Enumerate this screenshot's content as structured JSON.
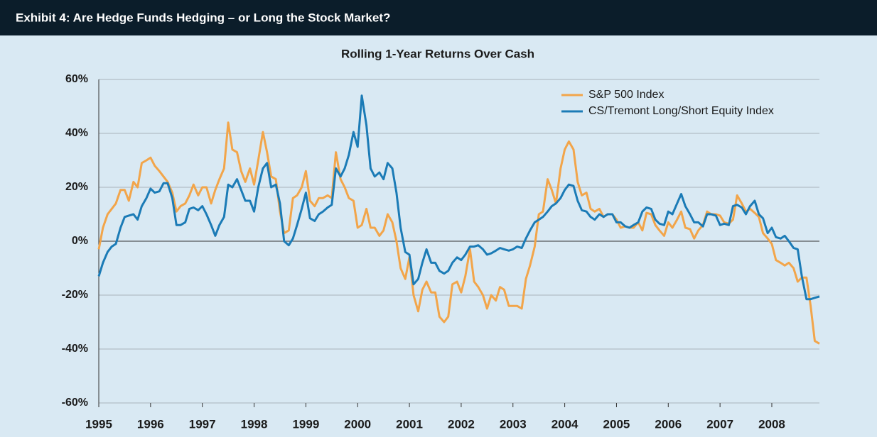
{
  "header": {
    "title": "Exhibit 4: Are Hedge Funds Hedging – or Long the Stock Market?"
  },
  "chart_data": {
    "type": "line",
    "title": "Rolling 1-Year Returns Over Cash",
    "x": [
      1995.0,
      1995.08,
      1995.17,
      1995.25,
      1995.33,
      1995.42,
      1995.5,
      1995.58,
      1995.67,
      1995.75,
      1995.83,
      1995.92,
      1996.0,
      1996.08,
      1996.17,
      1996.25,
      1996.33,
      1996.42,
      1996.5,
      1996.58,
      1996.67,
      1996.75,
      1996.83,
      1996.92,
      1997.0,
      1997.08,
      1997.17,
      1997.25,
      1997.33,
      1997.42,
      1997.5,
      1997.58,
      1997.67,
      1997.75,
      1997.83,
      1997.92,
      1998.0,
      1998.08,
      1998.17,
      1998.25,
      1998.33,
      1998.42,
      1998.5,
      1998.58,
      1998.67,
      1998.75,
      1998.83,
      1998.92,
      1999.0,
      1999.08,
      1999.17,
      1999.25,
      1999.33,
      1999.42,
      1999.5,
      1999.58,
      1999.67,
      1999.75,
      1999.83,
      1999.92,
      2000.0,
      2000.08,
      2000.17,
      2000.25,
      2000.33,
      2000.42,
      2000.5,
      2000.58,
      2000.67,
      2000.75,
      2000.83,
      2000.92,
      2001.0,
      2001.08,
      2001.17,
      2001.25,
      2001.33,
      2001.42,
      2001.5,
      2001.58,
      2001.67,
      2001.75,
      2001.83,
      2001.92,
      2002.0,
      2002.08,
      2002.17,
      2002.25,
      2002.33,
      2002.42,
      2002.5,
      2002.58,
      2002.67,
      2002.75,
      2002.83,
      2002.92,
      2003.0,
      2003.08,
      2003.17,
      2003.25,
      2003.33,
      2003.42,
      2003.5,
      2003.58,
      2003.67,
      2003.75,
      2003.83,
      2003.92,
      2004.0,
      2004.08,
      2004.17,
      2004.25,
      2004.33,
      2004.42,
      2004.5,
      2004.58,
      2004.67,
      2004.75,
      2004.83,
      2004.92,
      2005.0,
      2005.08,
      2005.17,
      2005.25,
      2005.33,
      2005.42,
      2005.5,
      2005.58,
      2005.67,
      2005.75,
      2005.83,
      2005.92,
      2006.0,
      2006.08,
      2006.17,
      2006.25,
      2006.33,
      2006.42,
      2006.5,
      2006.58,
      2006.67,
      2006.75,
      2006.83,
      2006.92,
      2007.0,
      2007.08,
      2007.17,
      2007.25,
      2007.33,
      2007.42,
      2007.5,
      2007.58,
      2007.67,
      2007.75,
      2007.83,
      2007.92,
      2008.0,
      2008.08,
      2008.17,
      2008.25,
      2008.33,
      2008.42,
      2008.5,
      2008.58,
      2008.67,
      2008.75,
      2008.83,
      2008.92
    ],
    "series": [
      {
        "name": "S&P 500 Index",
        "color": "#f2a54a",
        "values": [
          -3,
          5,
          10,
          12,
          14,
          19,
          19,
          15,
          22,
          20,
          29,
          30,
          31,
          28,
          26,
          24,
          22,
          18,
          11,
          13,
          14,
          17,
          21,
          17,
          20,
          20,
          14,
          19,
          23,
          27,
          44,
          34,
          33,
          26,
          22,
          27,
          21,
          30,
          40.5,
          33,
          24,
          23,
          11,
          3,
          4,
          16,
          17,
          20,
          26,
          15,
          13,
          16,
          16,
          17,
          16,
          33,
          23,
          20,
          16,
          15,
          5,
          6,
          12,
          5,
          5,
          2,
          4,
          10,
          7,
          0,
          -10,
          -14,
          -6,
          -20,
          -26,
          -18,
          -15,
          -19,
          -19,
          -28,
          -30,
          -28,
          -16,
          -15,
          -19,
          -13,
          -3,
          -15,
          -17,
          -20,
          -25,
          -20,
          -22,
          -17,
          -18,
          -24,
          -24,
          -24,
          -25,
          -14,
          -9,
          -2,
          10,
          11,
          23,
          19,
          14,
          27,
          34,
          37,
          34,
          22,
          17,
          18,
          12,
          11,
          12,
          9,
          10,
          10,
          8,
          5,
          5.5,
          5,
          5,
          7,
          4,
          10.5,
          10,
          6,
          4,
          2,
          7,
          5,
          8,
          11,
          5,
          4.5,
          1,
          4,
          6,
          11,
          10,
          10,
          9.5,
          7,
          6.5,
          8,
          17,
          14,
          11,
          12,
          10.5,
          9,
          3,
          1,
          -1,
          -7,
          -8,
          -9,
          -8,
          -10,
          -15,
          -13.5,
          -13.5,
          -24,
          -37,
          -38
        ]
      },
      {
        "name": "CS/Tremont Long/Short Equity Index",
        "color": "#1b7bb6",
        "values": [
          -13,
          -8,
          -4,
          -2,
          -1,
          5,
          9,
          9.5,
          10,
          8,
          13,
          16,
          19.5,
          18,
          18.5,
          21.5,
          21.5,
          16,
          6,
          6,
          7,
          12,
          12.5,
          11.5,
          13,
          10,
          6,
          2,
          6,
          9,
          21,
          20,
          23,
          19,
          15,
          15,
          11,
          20,
          27,
          29,
          20,
          21,
          14,
          0,
          -1.5,
          1,
          6,
          12,
          18,
          8.5,
          7.5,
          10,
          11,
          12.5,
          13.5,
          27,
          24,
          27,
          32,
          40.5,
          35,
          54,
          43,
          27,
          24,
          25.5,
          23,
          29,
          27,
          18,
          5,
          -4,
          -5,
          -16,
          -14,
          -8,
          -3,
          -8,
          -8,
          -11,
          -12,
          -11,
          -8,
          -6,
          -7,
          -5,
          -2,
          -2,
          -1.5,
          -3,
          -5,
          -4.5,
          -3.5,
          -2.5,
          -3,
          -3.5,
          -3,
          -2,
          -2.5,
          1,
          4,
          7,
          8,
          9,
          11,
          13,
          14,
          16,
          19,
          21,
          20.5,
          15,
          11.5,
          11,
          9,
          8,
          10,
          9,
          10,
          10,
          7,
          7,
          5.5,
          5,
          6,
          7,
          11,
          12.5,
          12,
          8,
          6.5,
          6,
          11,
          10,
          14,
          17.5,
          13,
          10,
          7,
          7,
          5.5,
          10,
          10,
          9.5,
          6,
          6.5,
          6,
          13,
          13.5,
          12.5,
          10,
          13,
          15,
          10,
          8.5,
          3,
          5,
          1.5,
          1,
          2,
          0,
          -2.5,
          -3,
          -13,
          -21.5,
          -21.5,
          -21,
          -20.5
        ]
      }
    ],
    "xlim": [
      1995,
      2008.92
    ],
    "xticks": [
      1995,
      1996,
      1997,
      1998,
      1999,
      2000,
      2001,
      2002,
      2003,
      2004,
      2005,
      2006,
      2007,
      2008
    ],
    "ylim": [
      -60,
      60
    ],
    "yticks": [
      {
        "value": -60,
        "label": "-60%"
      },
      {
        "value": -40,
        "label": "-40%"
      },
      {
        "value": -20,
        "label": "-20%"
      },
      {
        "value": 0,
        "label": "0%"
      },
      {
        "value": 20,
        "label": "20%"
      },
      {
        "value": 40,
        "label": "40%"
      },
      {
        "value": 60,
        "label": "60%"
      }
    ],
    "grid": true,
    "legend": "upper right"
  }
}
